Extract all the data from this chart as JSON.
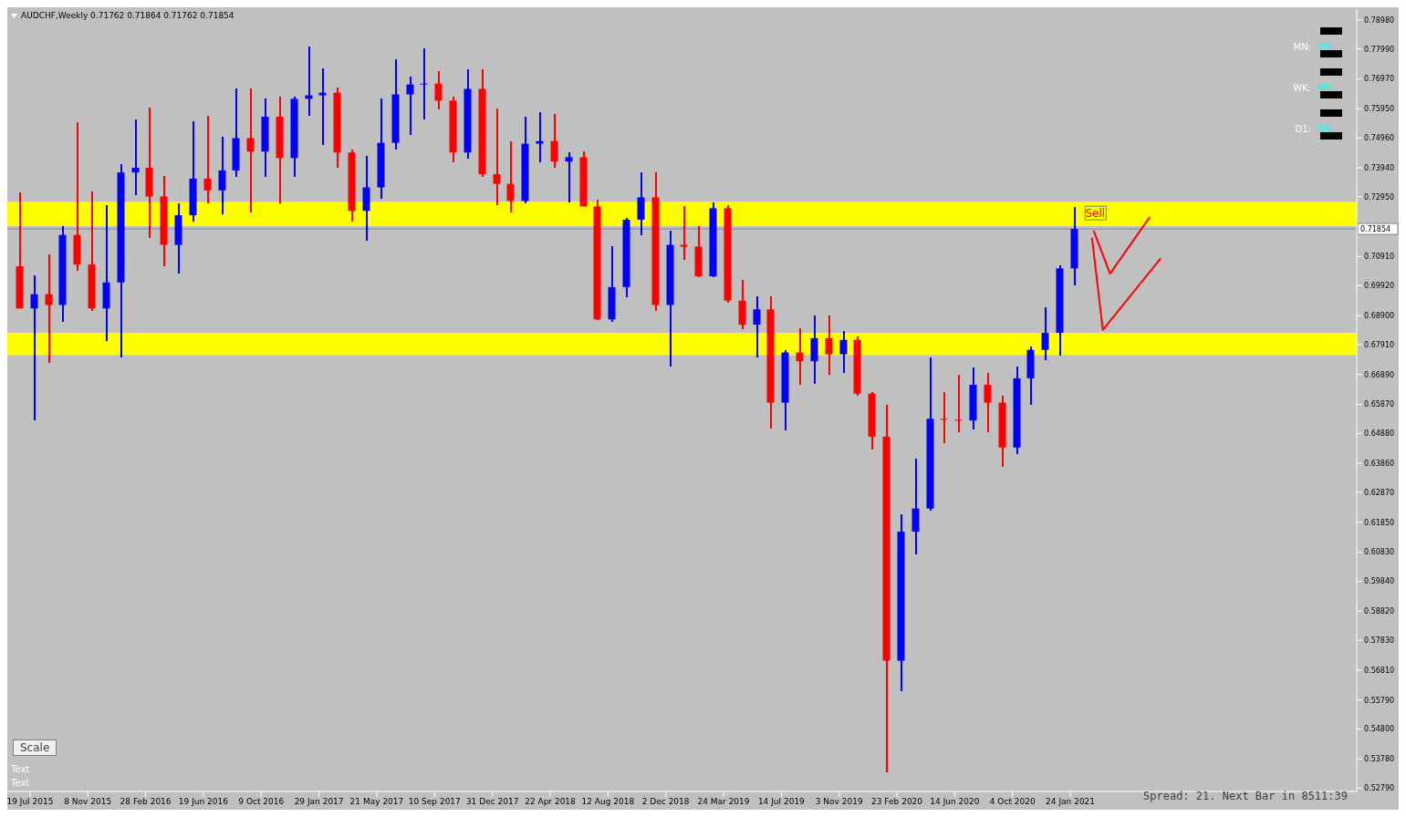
{
  "chart_data": {
    "type": "candlestick",
    "title": "AUDCHF,Weekly  0.71762 0.71864 0.71762 0.71854",
    "x": [
      "2015-06-28",
      "2015-07-26",
      "2015-08-23",
      "2015-09-20",
      "2015-10-18",
      "2015-11-15",
      "2015-12-13",
      "2016-01-10",
      "2016-02-07",
      "2016-03-06",
      "2016-04-03",
      "2016-05-01",
      "2016-05-29",
      "2016-06-26",
      "2016-07-24",
      "2016-08-21",
      "2016-09-18",
      "2016-10-16",
      "2016-11-13",
      "2016-12-11",
      "2017-01-08",
      "2017-02-05",
      "2017-03-05",
      "2017-04-02",
      "2017-04-30",
      "2017-05-28",
      "2017-06-25",
      "2017-07-23",
      "2017-08-20",
      "2017-09-17",
      "2017-10-15",
      "2017-11-12",
      "2017-12-10",
      "2018-01-07",
      "2018-02-04",
      "2018-03-04",
      "2018-04-01",
      "2018-04-29",
      "2018-05-27",
      "2018-06-24",
      "2018-07-22",
      "2018-08-19",
      "2018-09-16",
      "2018-10-14",
      "2018-11-11",
      "2018-12-09",
      "2019-01-06",
      "2019-02-03",
      "2019-03-03",
      "2019-03-31",
      "2019-04-28",
      "2019-05-26",
      "2019-06-23",
      "2019-07-21",
      "2019-08-18",
      "2019-09-15",
      "2019-10-13",
      "2019-11-10",
      "2019-12-08",
      "2020-01-05",
      "2020-02-02",
      "2020-03-01",
      "2020-03-29",
      "2020-04-26",
      "2020-05-24",
      "2020-06-21",
      "2020-07-19",
      "2020-08-16",
      "2020-09-13",
      "2020-10-11",
      "2020-11-08",
      "2020-12-06",
      "2021-01-03",
      "2021-01-31"
    ],
    "ohlc": [
      [
        0.7058,
        0.7311,
        0.6914,
        0.6914
      ],
      [
        0.6914,
        0.7027,
        0.6532,
        0.6963
      ],
      [
        0.6963,
        0.7097,
        0.6728,
        0.6926
      ],
      [
        0.6926,
        0.7195,
        0.6868,
        0.7165
      ],
      [
        0.7165,
        0.755,
        0.7042,
        0.7064
      ],
      [
        0.7064,
        0.7314,
        0.6905,
        0.6914
      ],
      [
        0.6914,
        0.7268,
        0.6804,
        0.7003
      ],
      [
        0.7003,
        0.7406,
        0.6746,
        0.7378
      ],
      [
        0.7378,
        0.7559,
        0.7302,
        0.7394
      ],
      [
        0.7394,
        0.7598,
        0.7155,
        0.7296
      ],
      [
        0.7296,
        0.7366,
        0.7058,
        0.7131
      ],
      [
        0.7131,
        0.7272,
        0.7033,
        0.7232
      ],
      [
        0.7232,
        0.7553,
        0.721,
        0.7357
      ],
      [
        0.7357,
        0.7571,
        0.7272,
        0.7317
      ],
      [
        0.7317,
        0.7501,
        0.7235,
        0.7385
      ],
      [
        0.7385,
        0.7666,
        0.7363,
        0.7495
      ],
      [
        0.7495,
        0.7663,
        0.7241,
        0.7449
      ],
      [
        0.7449,
        0.7629,
        0.7363,
        0.7568
      ],
      [
        0.7568,
        0.7638,
        0.7272,
        0.7427
      ],
      [
        0.7427,
        0.7638,
        0.7363,
        0.7629
      ],
      [
        0.7629,
        0.7809,
        0.7571,
        0.7641
      ],
      [
        0.7641,
        0.7733,
        0.7473,
        0.765
      ],
      [
        0.765,
        0.7669,
        0.7394,
        0.7446
      ],
      [
        0.7446,
        0.7455,
        0.721,
        0.7247
      ],
      [
        0.7247,
        0.7433,
        0.7146,
        0.7327
      ],
      [
        0.7327,
        0.7629,
        0.7287,
        0.7479
      ],
      [
        0.7479,
        0.7763,
        0.7455,
        0.7644
      ],
      [
        0.7644,
        0.7705,
        0.7507,
        0.7678
      ],
      [
        0.7678,
        0.78,
        0.7559,
        0.7681
      ],
      [
        0.7681,
        0.7724,
        0.7592,
        0.7623
      ],
      [
        0.7623,
        0.7638,
        0.7412,
        0.7446
      ],
      [
        0.7446,
        0.773,
        0.7424,
        0.7663
      ],
      [
        0.7663,
        0.773,
        0.7363,
        0.7372
      ],
      [
        0.7372,
        0.7595,
        0.7265,
        0.7339
      ],
      [
        0.7339,
        0.7485,
        0.7241,
        0.7281
      ],
      [
        0.7281,
        0.7568,
        0.7272,
        0.7476
      ],
      [
        0.7476,
        0.7583,
        0.7412,
        0.7485
      ],
      [
        0.7485,
        0.7577,
        0.7394,
        0.7415
      ],
      [
        0.7415,
        0.7446,
        0.7275,
        0.743
      ],
      [
        0.743,
        0.7449,
        0.7262,
        0.7262
      ],
      [
        0.7262,
        0.7284,
        0.6874,
        0.6877
      ],
      [
        0.6877,
        0.7125,
        0.6868,
        0.6987
      ],
      [
        0.6987,
        0.7223,
        0.6951,
        0.7217
      ],
      [
        0.7217,
        0.7378,
        0.7165,
        0.7293
      ],
      [
        0.7293,
        0.7378,
        0.6905,
        0.6926
      ],
      [
        0.6926,
        0.718,
        0.6715,
        0.7131
      ],
      [
        0.7131,
        0.7262,
        0.7079,
        0.7125
      ],
      [
        0.7125,
        0.7195,
        0.7021,
        0.7024
      ],
      [
        0.7024,
        0.7275,
        0.7021,
        0.7256
      ],
      [
        0.7256,
        0.7265,
        0.6935,
        0.6941
      ],
      [
        0.6941,
        0.7012,
        0.6844,
        0.6859
      ],
      [
        0.6859,
        0.6957,
        0.6746,
        0.6911
      ],
      [
        0.6911,
        0.6957,
        0.6504,
        0.6593
      ],
      [
        0.6593,
        0.6773,
        0.6498,
        0.6764
      ],
      [
        0.6764,
        0.6847,
        0.6654,
        0.6734
      ],
      [
        0.6734,
        0.689,
        0.6657,
        0.6813
      ],
      [
        0.6813,
        0.689,
        0.6688,
        0.6758
      ],
      [
        0.6758,
        0.6838,
        0.6694,
        0.6807
      ],
      [
        0.6807,
        0.6819,
        0.6618,
        0.6624
      ],
      [
        0.6624,
        0.663,
        0.6434,
        0.6477
      ],
      [
        0.6477,
        0.6584,
        0.5331,
        0.5713
      ],
      [
        0.5713,
        0.6211,
        0.5609,
        0.6153
      ],
      [
        0.6153,
        0.6401,
        0.6074,
        0.6232
      ],
      [
        0.6232,
        0.6746,
        0.6226,
        0.6538
      ],
      [
        0.6538,
        0.663,
        0.6456,
        0.6535
      ],
      [
        0.6535,
        0.6688,
        0.6492,
        0.6532
      ],
      [
        0.6532,
        0.6712,
        0.6501,
        0.6654
      ],
      [
        0.6654,
        0.6694,
        0.6492,
        0.6593
      ],
      [
        0.6593,
        0.6618,
        0.6373,
        0.644
      ],
      [
        0.644,
        0.6715,
        0.6416,
        0.6676
      ],
      [
        0.6676,
        0.6783,
        0.6584,
        0.6773
      ],
      [
        0.6773,
        0.6917,
        0.6737,
        0.6831
      ],
      [
        0.6831,
        0.7061,
        0.6752,
        0.7051
      ],
      [
        0.7051,
        0.7259,
        0.6993,
        0.71854
      ]
    ],
    "colors": [
      "#ff0000",
      "#0000ff",
      "#ff0000",
      "#0000ff",
      "#ff0000",
      "#ff0000",
      "#0000ff",
      "#0000ff",
      "#0000ff",
      "#ff0000",
      "#ff0000",
      "#0000ff",
      "#0000ff",
      "#ff0000",
      "#0000ff",
      "#0000ff",
      "#ff0000",
      "#0000ff",
      "#ff0000",
      "#0000ff",
      "#0000ff",
      "#0000ff",
      "#ff0000",
      "#ff0000",
      "#0000ff",
      "#0000ff",
      "#0000ff",
      "#0000ff",
      "#0000ff",
      "#ff0000",
      "#ff0000",
      "#0000ff",
      "#ff0000",
      "#ff0000",
      "#ff0000",
      "#0000ff",
      "#0000ff",
      "#ff0000",
      "#0000ff",
      "#ff0000",
      "#ff0000",
      "#0000ff",
      "#0000ff",
      "#0000ff",
      "#ff0000",
      "#0000ff",
      "#ff0000",
      "#ff0000",
      "#0000ff",
      "#ff0000",
      "#ff0000",
      "#0000ff",
      "#ff0000",
      "#0000ff",
      "#ff0000",
      "#0000ff",
      "#ff0000",
      "#0000ff",
      "#ff0000",
      "#ff0000",
      "#ff0000",
      "#0000ff",
      "#0000ff",
      "#0000ff",
      "#ff0000",
      "#ff0000",
      "#0000ff",
      "#ff0000",
      "#ff0000",
      "#0000ff",
      "#0000ff",
      "#0000ff",
      "#0000ff",
      "#0000ff"
    ],
    "series": [
      {
        "type": "line",
        "color": "#ff0000",
        "x": [
          "2021-03-10",
          "2021-04-11",
          "2021-06-27"
        ],
        "values": [
          0.718,
          0.7033,
          0.7226
        ]
      },
      {
        "type": "line",
        "color": "#ff0000",
        "x": [
          "2021-03-07",
          "2021-03-28",
          "2021-07-18"
        ],
        "values": [
          0.7155,
          0.6841,
          0.7085
        ]
      }
    ],
    "xlim": [
      "2015-06-05",
      "2022-08-02"
    ],
    "xticks": [
      {
        "value": "2015-07-19",
        "label": "19 Jul 2015"
      },
      {
        "value": "2015-11-08",
        "label": "8 Nov 2015"
      },
      {
        "value": "2016-02-28",
        "label": "28 Feb 2016"
      },
      {
        "value": "2016-06-19",
        "label": "19 Jun 2016"
      },
      {
        "value": "2016-10-09",
        "label": "9 Oct 2016"
      },
      {
        "value": "2017-01-29",
        "label": "29 Jan 2017"
      },
      {
        "value": "2017-05-21",
        "label": "21 May 2017"
      },
      {
        "value": "2017-09-10",
        "label": "10 Sep 2017"
      },
      {
        "value": "2017-12-31",
        "label": "31 Dec 2017"
      },
      {
        "value": "2018-04-22",
        "label": "22 Apr 2018"
      },
      {
        "value": "2018-08-12",
        "label": "12 Aug 2018"
      },
      {
        "value": "2018-12-02",
        "label": "2 Dec 2018"
      },
      {
        "value": "2019-03-24",
        "label": "24 Mar 2019"
      },
      {
        "value": "2019-07-14",
        "label": "14 Jul 2019"
      },
      {
        "value": "2019-11-03",
        "label": "3 Nov 2019"
      },
      {
        "value": "2020-02-23",
        "label": "23 Feb 2020"
      },
      {
        "value": "2020-06-14",
        "label": "14 Jun 2020"
      },
      {
        "value": "2020-10-04",
        "label": "4 Oct 2020"
      },
      {
        "value": "2021-01-24",
        "label": "24 Jan 2021"
      }
    ],
    "ylim": [
      0.5267,
      0.7935
    ],
    "yticks": [
      {
        "value": 0.5279,
        "label": "0.52790"
      },
      {
        "value": 0.5378,
        "label": "0.53780"
      },
      {
        "value": 0.548,
        "label": "0.54800"
      },
      {
        "value": 0.5579,
        "label": "0.55790"
      },
      {
        "value": 0.5681,
        "label": "0.56810"
      },
      {
        "value": 0.5783,
        "label": "0.57830"
      },
      {
        "value": 0.5882,
        "label": "0.58820"
      },
      {
        "value": 0.5984,
        "label": "0.59840"
      },
      {
        "value": 0.6083,
        "label": "0.60830"
      },
      {
        "value": 0.6185,
        "label": "0.61850"
      },
      {
        "value": 0.6287,
        "label": "0.62870"
      },
      {
        "value": 0.6386,
        "label": "0.63860"
      },
      {
        "value": 0.6488,
        "label": "0.64880"
      },
      {
        "value": 0.6587,
        "label": "0.65870"
      },
      {
        "value": 0.6689,
        "label": "0.66890"
      },
      {
        "value": 0.6791,
        "label": "0.67910"
      },
      {
        "value": 0.689,
        "label": "0.68900"
      },
      {
        "value": 0.6992,
        "label": "0.69920"
      },
      {
        "value": 0.7091,
        "label": "0.70910"
      },
      {
        "value": 0.7295,
        "label": "0.72950"
      },
      {
        "value": 0.7394,
        "label": "0.73940"
      },
      {
        "value": 0.7496,
        "label": "0.74960"
      },
      {
        "value": 0.7595,
        "label": "0.75950"
      },
      {
        "value": 0.7697,
        "label": "0.76970"
      },
      {
        "value": 0.7799,
        "label": "0.77990"
      },
      {
        "value": 0.7898,
        "label": "0.78980"
      }
    ],
    "bands": [
      {
        "axis": "y",
        "from": 0.7195,
        "to": 0.7278,
        "color": "#ffff00"
      },
      {
        "axis": "y",
        "from": 0.6755,
        "to": 0.6831,
        "color": "#ffff00"
      }
    ],
    "ref_lines": [
      {
        "axis": "y",
        "value": 0.71854,
        "label": "0.71854",
        "color": "#778899"
      }
    ],
    "annotations": [
      {
        "text": "Sell",
        "x": "2021-03-13",
        "y": 0.7238
      },
      "MN:",
      "0%",
      "WK:",
      "0%",
      "D1:",
      "0%",
      "Scale",
      "Text",
      "Text",
      "Spread: 21. Next Bar in 8511:39"
    ],
    "grid": false,
    "legend": false
  }
}
